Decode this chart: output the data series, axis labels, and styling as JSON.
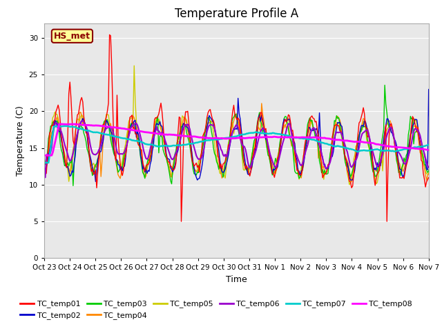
{
  "title": "Temperature Profile A",
  "xlabel": "Time",
  "ylabel": "Temperature (C)",
  "ylim": [
    0,
    32
  ],
  "yticks": [
    0,
    5,
    10,
    15,
    20,
    25,
    30
  ],
  "xtick_labels": [
    "Oct 23",
    "Oct 24",
    "Oct 25",
    "Oct 26",
    "Oct 27",
    "Oct 28",
    "Oct 29",
    "Oct 30",
    "Oct 31",
    "Nov 1",
    "Nov 2",
    "Nov 3",
    "Nov 4",
    "Nov 5",
    "Nov 6",
    "Nov 7"
  ],
  "annotation_text": "HS_met",
  "annotation_color": "#8B0000",
  "annotation_bg": "#FFFF99",
  "bg_color": "#E8E8E8",
  "series": {
    "TC_temp01": {
      "color": "#FF0000",
      "lw": 1.0
    },
    "TC_temp02": {
      "color": "#0000CC",
      "lw": 1.0
    },
    "TC_temp03": {
      "color": "#00CC00",
      "lw": 1.0
    },
    "TC_temp04": {
      "color": "#FF8800",
      "lw": 1.0
    },
    "TC_temp05": {
      "color": "#CCCC00",
      "lw": 1.0
    },
    "TC_temp06": {
      "color": "#9900CC",
      "lw": 1.5
    },
    "TC_temp07": {
      "color": "#00CCCC",
      "lw": 1.8
    },
    "TC_temp08": {
      "color": "#FF00FF",
      "lw": 2.0
    }
  },
  "grid_color": "#FFFFFF",
  "title_fontsize": 12,
  "axis_fontsize": 9
}
